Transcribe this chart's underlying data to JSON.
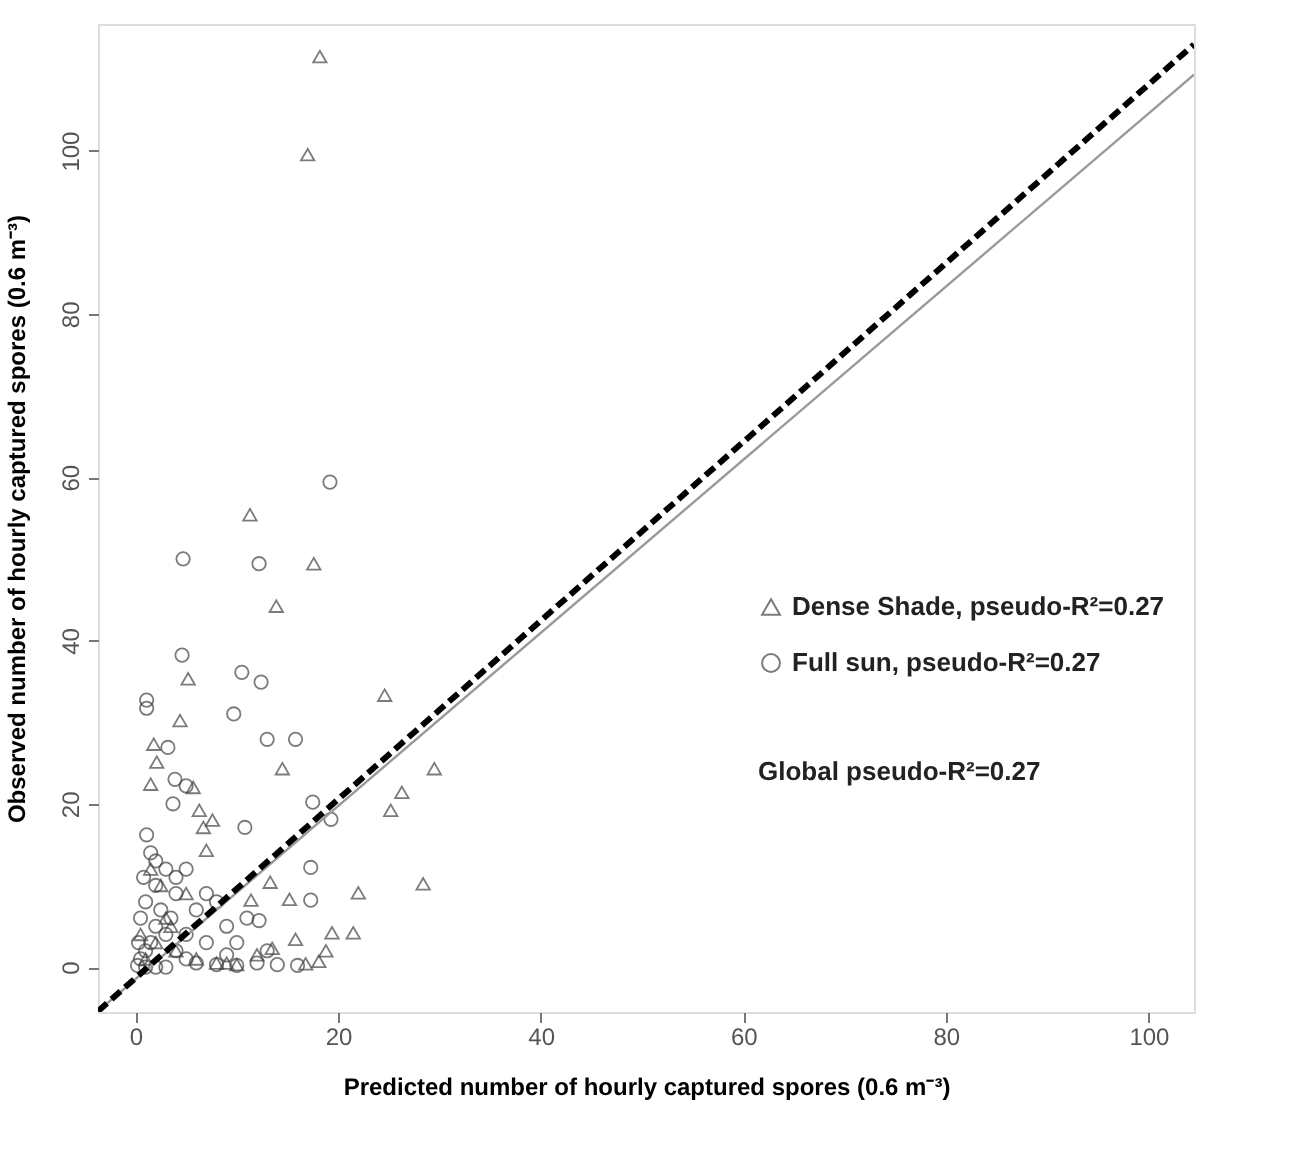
{
  "chart_data": {
    "type": "scatter",
    "xlabel": "Predicted number of hourly captured spores (0.6 m⁻³)",
    "ylabel": "Observed number of hourly captured spores (0.6 m⁻³)",
    "xlim": [
      -3.7,
      104.5
    ],
    "ylim": [
      -5.5,
      115.5
    ],
    "xticks": [
      0,
      20,
      40,
      60,
      80,
      100
    ],
    "yticks": [
      0,
      20,
      40,
      60,
      80,
      100
    ],
    "grid": false,
    "legend": "right",
    "annotations": [
      "Global pseudo-R²=0.27"
    ],
    "series": [
      {
        "name": "Dense Shade, pseudo-R²=0.27",
        "color": "#444444",
        "marker": "triangle",
        "x": [
          18.2,
          17.0,
          11.3,
          17.6,
          13.9,
          5.2,
          4.4,
          1.8,
          2.1,
          1.5,
          14.5,
          24.6,
          29.5,
          26.3,
          25.2,
          28.4,
          22.0,
          13.3,
          15.2,
          11.4,
          19.4,
          21.5,
          15.8,
          13.5,
          18.8,
          18.1,
          16.8,
          6.3,
          6.7,
          7.0,
          5.7,
          7.6,
          1.0,
          2.0,
          3.0,
          4.0,
          5.0,
          6.0,
          8.0,
          10.0,
          12.0,
          1.5,
          2.5,
          3.5,
          0.5,
          9.0
        ],
        "values": [
          111.5,
          99.5,
          55.4,
          49.4,
          44.2,
          35.3,
          30.2,
          27.3,
          25.1,
          22.4,
          24.3,
          33.3,
          24.3,
          21.4,
          19.2,
          10.2,
          9.1,
          10.4,
          8.3,
          8.2,
          4.2,
          4.2,
          3.4,
          2.3,
          2.0,
          0.7,
          0.4,
          19.2,
          17.1,
          14.3,
          22.0,
          18.0,
          1.0,
          3.0,
          6.0,
          2.0,
          9.0,
          1.0,
          0.5,
          0.3,
          1.5,
          12.0,
          10.0,
          5.0,
          4.0,
          0.5
        ]
      },
      {
        "name": "Full sun, pseudo-R²=0.27",
        "color": "#444444",
        "marker": "circle",
        "x": [
          19.2,
          4.7,
          12.2,
          4.6,
          10.5,
          12.4,
          1.1,
          1.1,
          9.7,
          13.0,
          15.8,
          3.2,
          3.9,
          5.0,
          3.7,
          17.5,
          19.3,
          10.8,
          1.1,
          17.3,
          17.3,
          12.2,
          0.5,
          1.0,
          1.5,
          2.0,
          1.0,
          2.0,
          3.0,
          1.5,
          0.5,
          3.0,
          4.0,
          5.0,
          6.0,
          8.0,
          10.0,
          12.0,
          14.0,
          16.0,
          7.0,
          9.0,
          6.0,
          4.0,
          2.5,
          3.5,
          5.0,
          0.3,
          0.8,
          2.0,
          4.0,
          5.0,
          7.0,
          8.0,
          11.0,
          10.0,
          13.0,
          9.0,
          0.2,
          1.0,
          2.0,
          3.0
        ],
        "values": [
          59.4,
          50.0,
          49.4,
          38.2,
          36.1,
          34.9,
          32.7,
          31.7,
          31.0,
          27.9,
          27.9,
          26.9,
          23.0,
          22.2,
          20.0,
          20.2,
          18.1,
          17.1,
          16.2,
          12.2,
          8.2,
          5.7,
          1.0,
          2.0,
          3.0,
          5.0,
          8.0,
          10.0,
          12.0,
          14.0,
          6.0,
          4.0,
          2.0,
          1.0,
          0.5,
          0.3,
          0.2,
          0.5,
          0.3,
          0.2,
          3.0,
          5.0,
          7.0,
          9.0,
          7.0,
          6.0,
          4.0,
          3.0,
          11.0,
          13.0,
          11.0,
          12.0,
          9.0,
          8.0,
          6.0,
          3.0,
          2.0,
          1.5,
          0.2,
          0.0,
          0.0,
          0.0
        ]
      },
      {
        "type": "line",
        "color": "#999999",
        "line_style": "solid",
        "x": [
          -3.7,
          104.5
        ],
        "values": [
          -5.4,
          109.3
        ]
      },
      {
        "type": "line",
        "color": "#000000",
        "line_style": "dashed",
        "x": [
          -3.7,
          104.5
        ],
        "values": [
          -5.4,
          113.0
        ]
      }
    ]
  }
}
